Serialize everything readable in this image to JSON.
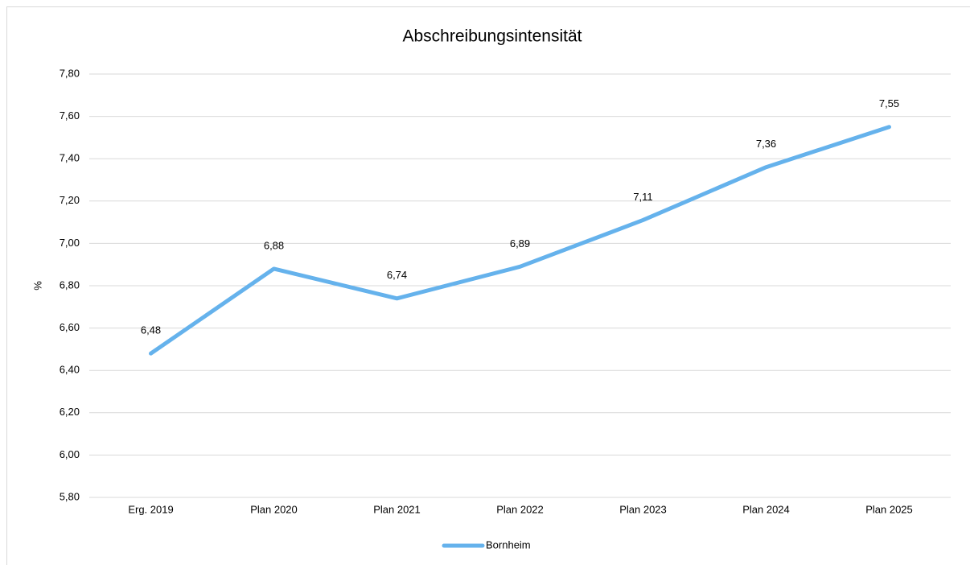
{
  "chart_data": {
    "type": "line",
    "title": "Abschreibungsintensität",
    "ylabel": "%",
    "categories": [
      "Erg. 2019",
      "Plan 2020",
      "Plan 2021",
      "Plan 2022",
      "Plan 2023",
      "Plan 2024",
      "Plan 2025"
    ],
    "series": [
      {
        "name": "Bornheim",
        "color": "#65b2ec",
        "values": [
          6.48,
          6.88,
          6.74,
          6.89,
          7.11,
          7.36,
          7.55
        ],
        "value_labels": [
          "6,48",
          "6,88",
          "6,74",
          "6,89",
          "7,11",
          "7,36",
          "7,55"
        ]
      }
    ],
    "ylim": [
      5.8,
      7.8
    ],
    "yticks": [
      {
        "value": 5.8,
        "label": "5,80"
      },
      {
        "value": 6.0,
        "label": "6,00"
      },
      {
        "value": 6.2,
        "label": "6,20"
      },
      {
        "value": 6.4,
        "label": "6,40"
      },
      {
        "value": 6.6,
        "label": "6,60"
      },
      {
        "value": 6.8,
        "label": "6,80"
      },
      {
        "value": 7.0,
        "label": "7,00"
      },
      {
        "value": 7.2,
        "label": "7,20"
      },
      {
        "value": 7.4,
        "label": "7,40"
      },
      {
        "value": 7.6,
        "label": "7,60"
      },
      {
        "value": 7.8,
        "label": "7,80"
      }
    ],
    "grid": true,
    "legend": "bottom"
  }
}
